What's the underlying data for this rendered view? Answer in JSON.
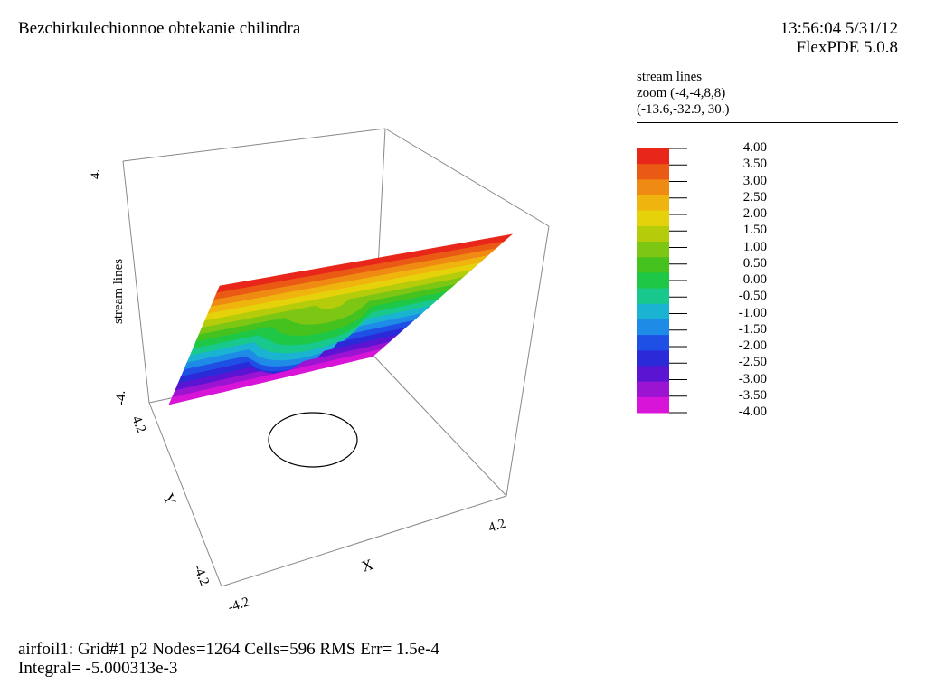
{
  "header": {
    "title": "Bezchirkulechionnoe obtekanie chilindra",
    "timestamp": "13:56:04 5/31/12",
    "version": "FlexPDE 5.0.8"
  },
  "plot_info": {
    "variable": "stream lines",
    "zoom": "zoom (-4,-4,8,8)",
    "view_point": "(-13.6,-32.9, 30.)"
  },
  "footer": {
    "line1": "airfoil1:  Grid#1  p2  Nodes=1264 Cells=596 RMS Err= 1.5e-4",
    "line2": "Integral= -5.000313e-3"
  },
  "chart_data": {
    "type": "surface",
    "title": "stream lines",
    "zlabel": "stream lines",
    "xlabel": "X",
    "ylabel": "Y",
    "x_ticks": [
      "-4.2",
      "4.2"
    ],
    "y_ticks": [
      "-4.2",
      "4.2"
    ],
    "z_ticks": [
      "-4.",
      "4."
    ],
    "xlim": [
      -4.2,
      4.2
    ],
    "ylim": [
      -4.2,
      4.2
    ],
    "zlim": [
      -4,
      4
    ],
    "legend": {
      "levels": [
        "4.00",
        "3.50",
        "3.00",
        "2.50",
        "2.00",
        "1.50",
        "1.00",
        "0.50",
        "0.00",
        "-0.50",
        "-1.00",
        "-1.50",
        "-2.00",
        "-2.50",
        "-3.00",
        "-3.50",
        "-4.00"
      ],
      "colors": [
        "#e8261a",
        "#ea5a14",
        "#ef8a12",
        "#f0b40e",
        "#e6d20a",
        "#b4cc0a",
        "#7ec614",
        "#46c21e",
        "#1ec846",
        "#18c88c",
        "#1ab4d2",
        "#1e8ce6",
        "#1e50e6",
        "#2a2ad8",
        "#5a14d2",
        "#9a14d2",
        "#d814d8"
      ]
    },
    "obstacle": "circle"
  }
}
